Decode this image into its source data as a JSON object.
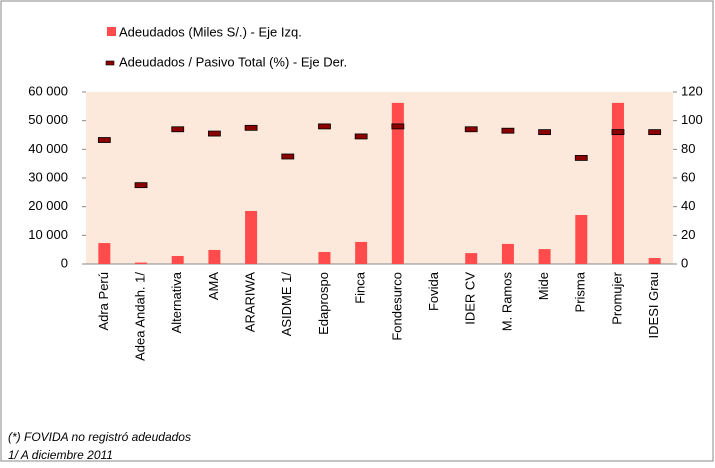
{
  "chart_data": {
    "type": "bar_marker",
    "categories": [
      "Adra Perú",
      "Adea Andah. 1/",
      "Alternativa",
      "AMA",
      "ARARIWA",
      "ASIDME 1/",
      "Edaprospo",
      "Finca",
      "Fondesurco",
      "Fovida",
      "IDER CV",
      "M. Ramos",
      "Mide",
      "Prisma",
      "Promujer",
      "IDESI Grau"
    ],
    "series": [
      {
        "name": "Adeudados (Miles S/.) - Eje Izq.",
        "color": "#ff4b4b",
        "values": [
          7300,
          500,
          2800,
          4900,
          18500,
          0,
          4200,
          7700,
          56200,
          null,
          3800,
          7000,
          5200,
          17100,
          56200,
          2100
        ]
      },
      {
        "name": "Adeudados / Pasivo Total (%) - Eje Der.",
        "color": "#8b0000",
        "axis": "y2",
        "values": [
          86.5,
          55,
          94,
          91,
          95,
          75,
          96,
          89,
          96,
          null,
          94,
          93,
          92,
          74,
          92,
          92
        ]
      }
    ],
    "ylim": [
      0,
      60000
    ],
    "yticks": [
      0,
      {
        "value": 10000,
        "label": "10 000"
      },
      {
        "value": 20000,
        "label": "20 000"
      },
      {
        "value": 30000,
        "label": "30 000"
      },
      {
        "value": 40000,
        "label": "40 000"
      },
      {
        "value": 50000,
        "label": "50 000"
      },
      {
        "value": 60000,
        "label": "60 000"
      }
    ],
    "y2lim": [
      0,
      120
    ],
    "y2ticks": [
      0,
      20,
      40,
      60,
      80,
      100,
      120
    ],
    "plot_background": "#fce9dc",
    "notes": [
      "(*) FOVIDA no registró adeudados",
      "1/ A diciembre 2011"
    ]
  }
}
